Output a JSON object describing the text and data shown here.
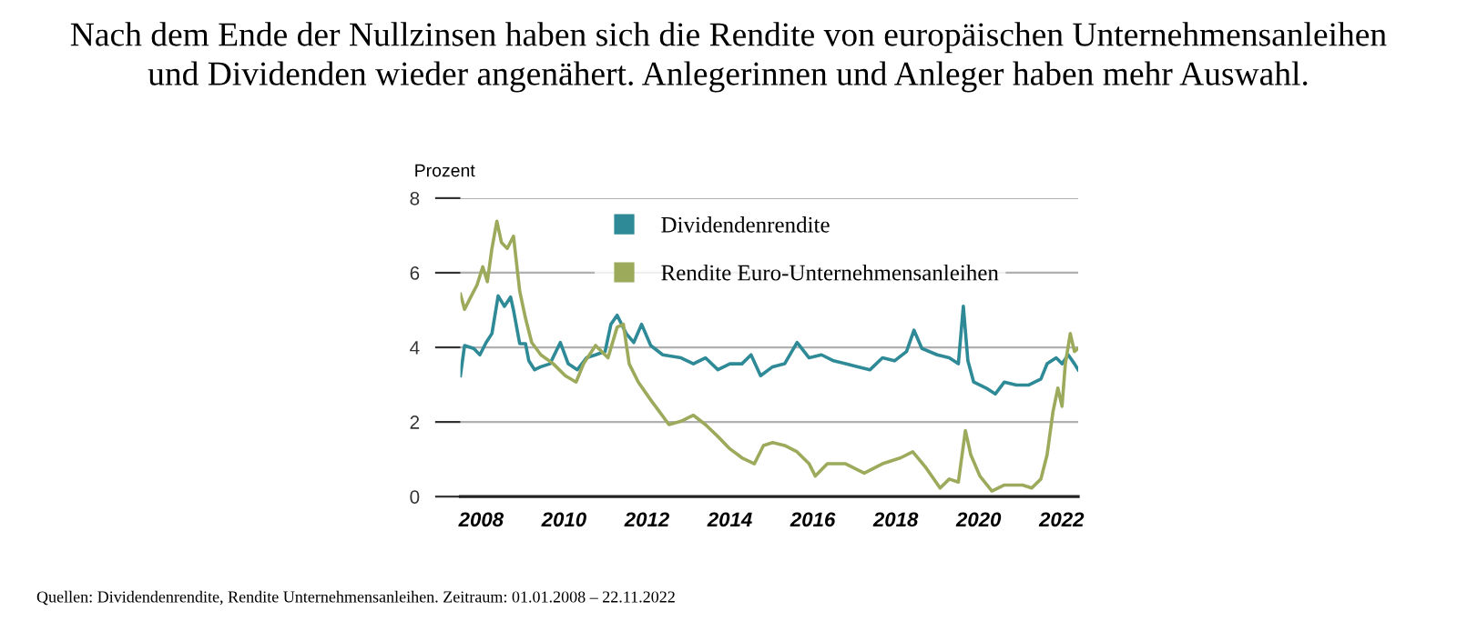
{
  "chart_data": {
    "type": "line",
    "title": "Nach dem Ende der Nullzinsen haben sich die Rendite von europäischen Unternehmensanleihen\nund Dividenden wieder angenähert. Anlegerinnen und Anleger haben mehr Auswahl.",
    "ylabel": "Prozent",
    "xlim": [
      2008,
      2022.9
    ],
    "xticks": [
      {
        "value": 2008.5,
        "label": "2008"
      },
      {
        "value": 2010.5,
        "label": "2010"
      },
      {
        "value": 2012.5,
        "label": "2012"
      },
      {
        "value": 2014.5,
        "label": "2014"
      },
      {
        "value": 2016.5,
        "label": "2016"
      },
      {
        "value": 2018.5,
        "label": "2018"
      },
      {
        "value": 2020.5,
        "label": "2020"
      },
      {
        "value": 2022.5,
        "label": "2022"
      }
    ],
    "ylim": [
      0,
      8
    ],
    "yticks": [
      0,
      2,
      4,
      6,
      8
    ],
    "grid": "y",
    "legend": "top",
    "marker": "none",
    "line_style": "solid",
    "annotations": [
      "Quellen: Dividendenrendite, Rendite Unternehmensanleihen. Zeitraum: 01.01.2008 – 22.11.2022"
    ],
    "series": [
      {
        "name": "Dividendenrendite",
        "color": "#2e8a96",
        "x": [
          2008.0,
          2008.1,
          2008.32,
          2008.47,
          2008.62,
          2008.76,
          2008.91,
          2009.06,
          2009.21,
          2009.28,
          2009.43,
          2009.57,
          2009.65,
          2009.79,
          2009.94,
          2010.16,
          2010.41,
          2010.6,
          2010.82,
          2011.04,
          2011.26,
          2011.49,
          2011.63,
          2011.78,
          2012.0,
          2012.18,
          2012.37,
          2012.59,
          2012.88,
          2013.32,
          2013.62,
          2013.91,
          2014.21,
          2014.5,
          2014.79,
          2015.01,
          2015.24,
          2015.53,
          2015.82,
          2016.12,
          2016.41,
          2016.71,
          2017.0,
          2017.29,
          2017.59,
          2017.88,
          2018.18,
          2018.47,
          2018.76,
          2018.94,
          2019.13,
          2019.5,
          2019.79,
          2020.01,
          2020.13,
          2020.24,
          2020.38,
          2020.68,
          2020.9,
          2021.12,
          2021.41,
          2021.71,
          2022.0,
          2022.15,
          2022.37,
          2022.51,
          2022.66,
          2022.81,
          2022.9
        ],
        "values": [
          3.24,
          4.05,
          3.97,
          3.8,
          4.13,
          4.37,
          5.38,
          5.1,
          5.35,
          5.0,
          4.1,
          4.1,
          3.64,
          3.4,
          3.48,
          3.56,
          4.13,
          3.56,
          3.4,
          3.72,
          3.8,
          3.89,
          4.62,
          4.86,
          4.37,
          4.13,
          4.62,
          4.05,
          3.8,
          3.72,
          3.56,
          3.72,
          3.4,
          3.56,
          3.56,
          3.8,
          3.24,
          3.48,
          3.56,
          4.13,
          3.72,
          3.8,
          3.64,
          3.56,
          3.48,
          3.4,
          3.72,
          3.64,
          3.89,
          4.46,
          3.97,
          3.8,
          3.72,
          3.56,
          5.1,
          3.64,
          3.07,
          2.91,
          2.75,
          3.07,
          2.99,
          2.99,
          3.15,
          3.56,
          3.72,
          3.56,
          3.8,
          3.56,
          3.4
        ]
      },
      {
        "name": "Rendite Euro-Unternehmensanleihen",
        "color": "#9caa5c",
        "x": [
          2008.0,
          2008.1,
          2008.25,
          2008.4,
          2008.54,
          2008.65,
          2008.76,
          2008.88,
          2008.99,
          2009.13,
          2009.28,
          2009.43,
          2009.57,
          2009.72,
          2009.94,
          2010.24,
          2010.53,
          2010.79,
          2010.97,
          2011.26,
          2011.56,
          2011.78,
          2011.93,
          2012.07,
          2012.29,
          2012.59,
          2012.81,
          2013.03,
          2013.32,
          2013.62,
          2013.91,
          2014.21,
          2014.5,
          2014.79,
          2015.09,
          2015.31,
          2015.53,
          2015.82,
          2016.12,
          2016.41,
          2016.56,
          2016.85,
          2017.29,
          2017.74,
          2018.18,
          2018.62,
          2018.91,
          2019.21,
          2019.57,
          2019.79,
          2020.01,
          2020.18,
          2020.31,
          2020.53,
          2020.82,
          2021.12,
          2021.56,
          2021.78,
          2022.0,
          2022.15,
          2022.29,
          2022.41,
          2022.51,
          2022.59,
          2022.71,
          2022.81,
          2022.9
        ],
        "values": [
          5.43,
          5.02,
          5.35,
          5.67,
          6.16,
          5.76,
          6.65,
          7.38,
          6.81,
          6.65,
          6.98,
          5.51,
          4.78,
          4.13,
          3.8,
          3.56,
          3.24,
          3.07,
          3.56,
          4.05,
          3.72,
          4.54,
          4.62,
          3.56,
          3.07,
          2.59,
          2.26,
          1.93,
          2.02,
          2.18,
          1.93,
          1.61,
          1.28,
          1.04,
          0.88,
          1.37,
          1.45,
          1.37,
          1.2,
          0.88,
          0.55,
          0.88,
          0.88,
          0.63,
          0.88,
          1.04,
          1.2,
          0.8,
          0.23,
          0.47,
          0.39,
          1.77,
          1.12,
          0.55,
          0.15,
          0.31,
          0.31,
          0.23,
          0.47,
          1.12,
          2.26,
          2.91,
          2.42,
          3.56,
          4.37,
          3.89,
          3.97
        ]
      }
    ]
  }
}
